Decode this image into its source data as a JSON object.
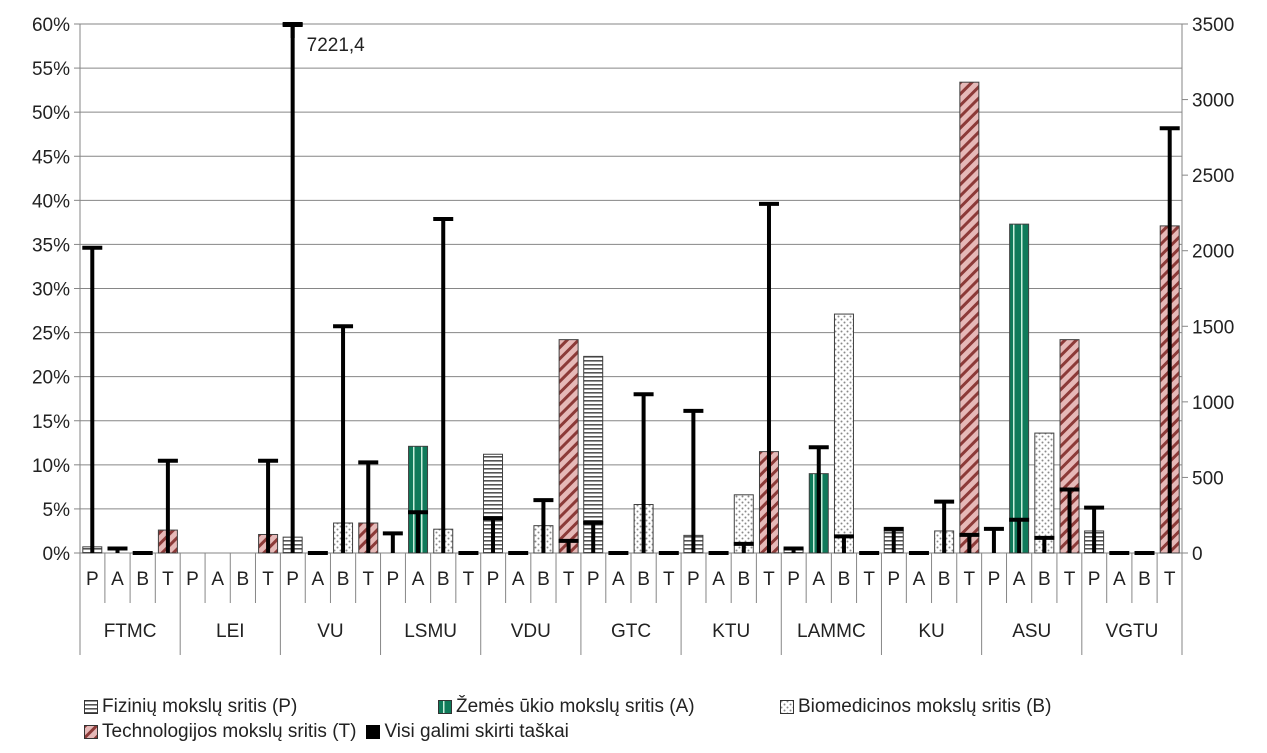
{
  "chart_data": {
    "type": "bar",
    "title": "",
    "institutions": [
      "FTMC",
      "LEI",
      "VU",
      "LSMU",
      "VDU",
      "GTC",
      "KTU",
      "LAMMC",
      "KU",
      "ASU",
      "VGTU"
    ],
    "sub_categories": [
      "P",
      "A",
      "B",
      "T"
    ],
    "left_axis": {
      "min": 0,
      "max": 60,
      "step": 5,
      "tick_labels": [
        "0%",
        "5%",
        "10%",
        "15%",
        "20%",
        "25%",
        "30%",
        "35%",
        "40%",
        "45%",
        "50%",
        "55%",
        "60%"
      ]
    },
    "right_axis": {
      "min": 0,
      "max": 3500,
      "step": 500,
      "tick_labels": [
        "0",
        "500",
        "1000",
        "1500",
        "2000",
        "2500",
        "3000",
        "3500"
      ]
    },
    "grid": true,
    "legend_position": "bottom",
    "series": [
      {
        "name": "Fizinių mokslų sritis (P)",
        "axis": "left",
        "pattern": "horizontal-stripes",
        "color": "#555555",
        "values": [
          0.7,
          0,
          1.8,
          0,
          11.2,
          22.3,
          2.0,
          0.5,
          2.5,
          0,
          2.5
        ]
      },
      {
        "name": "Žemės ūkio mokslų sritis (A)",
        "axis": "left",
        "pattern": "solid-green",
        "color": "#0f7a5a",
        "values": [
          0,
          0,
          0,
          12.1,
          0,
          0,
          0,
          9.0,
          0,
          37.3,
          0
        ]
      },
      {
        "name": "Biomedicinos mokslų sritis (B)",
        "axis": "left",
        "pattern": "dots",
        "color": "#888888",
        "values": [
          0,
          0,
          3.4,
          2.7,
          3.1,
          5.5,
          6.6,
          27.1,
          2.5,
          13.6,
          0
        ]
      },
      {
        "name": "Technologijos mokslų sritis (T)",
        "axis": "left",
        "pattern": "diagonal-pink",
        "color": "#d99694",
        "values": [
          2.6,
          2.1,
          3.4,
          0,
          24.2,
          0,
          11.5,
          0,
          53.4,
          24.2,
          37.1
        ]
      },
      {
        "name": "Visi galimi skirti taškai",
        "axis": "right",
        "pattern": "error-bar",
        "color": "#000000",
        "values": [
          [
            2020,
            30,
            0,
            610
          ],
          [
            null,
            null,
            null,
            610
          ],
          [
            7221.4,
            0,
            1500,
            600
          ],
          [
            130,
            270,
            2210,
            0
          ],
          [
            230,
            0,
            350,
            80
          ],
          [
            200,
            0,
            1050,
            0
          ],
          [
            940,
            0,
            60,
            2310
          ],
          [
            30,
            700,
            110,
            0
          ],
          [
            160,
            0,
            340,
            120
          ],
          [
            160,
            220,
            100,
            420
          ],
          [
            300,
            0,
            0,
            2810
          ]
        ]
      }
    ],
    "annotations": [
      {
        "text": "7221,4",
        "institution": "VU",
        "category": "P"
      }
    ]
  }
}
